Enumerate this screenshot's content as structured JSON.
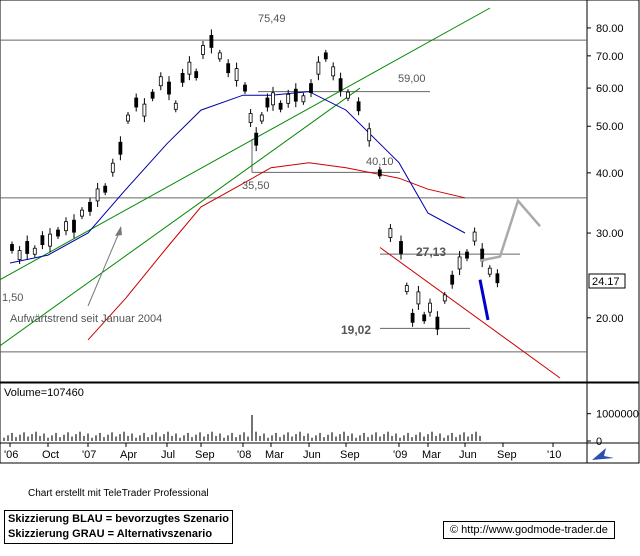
{
  "chart_data": [
    {
      "type": "candlestick",
      "y_scale": "log",
      "ylim": [
        15,
        88
      ],
      "y_ticks": [
        "80.00",
        "70.00",
        "60.00",
        "50.00",
        "40.00",
        "30.00",
        "20.00"
      ],
      "x_tick_labels": [
        "'06",
        "Oct",
        "'07",
        "Apr",
        "Jul",
        "Sep",
        "'08",
        "Mar",
        "Jun",
        "Sep",
        "'09",
        "Mar",
        "Jun",
        "Sep",
        "'10"
      ],
      "current_price_label": "24.17",
      "level_labels": [
        "75,49",
        "59,00",
        "40,10",
        "35,50",
        "27,13",
        "19,02",
        "1,50"
      ],
      "trend_annotation": "Aufwärtstrend seit Januar 2004",
      "price_path": [
        {
          "x": "'06",
          "y": 28
        },
        {
          "x": "'06",
          "y": 27
        },
        {
          "x": "'06",
          "y": 28
        },
        {
          "x": "'06",
          "y": 27.5
        },
        {
          "x": "'06",
          "y": 29
        },
        {
          "x": "Oct",
          "y": 29
        },
        {
          "x": "Oct",
          "y": 30
        },
        {
          "x": "Oct",
          "y": 31
        },
        {
          "x": "Oct",
          "y": 31
        },
        {
          "x": "Oct",
          "y": 33
        },
        {
          "x": "'07",
          "y": 34
        },
        {
          "x": "'07",
          "y": 36
        },
        {
          "x": "'07",
          "y": 37
        },
        {
          "x": "'07",
          "y": 41
        },
        {
          "x": "'07",
          "y": 45
        },
        {
          "x": "Apr",
          "y": 52
        },
        {
          "x": "Apr",
          "y": 56
        },
        {
          "x": "Apr",
          "y": 54
        },
        {
          "x": "Apr",
          "y": 58
        },
        {
          "x": "Apr",
          "y": 62
        },
        {
          "x": "Jul",
          "y": 60
        },
        {
          "x": "Jul",
          "y": 55
        },
        {
          "x": "Jul",
          "y": 63
        },
        {
          "x": "Jul",
          "y": 66
        },
        {
          "x": "Jul",
          "y": 64
        },
        {
          "x": "Sep",
          "y": 72
        },
        {
          "x": "Sep",
          "y": 75
        },
        {
          "x": "Sep",
          "y": 70
        },
        {
          "x": "Sep",
          "y": 66
        },
        {
          "x": "Sep",
          "y": 64
        },
        {
          "x": "'08",
          "y": 60
        },
        {
          "x": "'08",
          "y": 52
        },
        {
          "x": "'08",
          "y": 47
        },
        {
          "x": "'08",
          "y": 52
        },
        {
          "x": "'08",
          "y": 56
        },
        {
          "x": "Mar",
          "y": 57
        },
        {
          "x": "Mar",
          "y": 55
        },
        {
          "x": "Mar",
          "y": 57
        },
        {
          "x": "Mar",
          "y": 58
        },
        {
          "x": "Mar",
          "y": 57
        },
        {
          "x": "Jun",
          "y": 60
        },
        {
          "x": "Jun",
          "y": 66
        },
        {
          "x": "Jun",
          "y": 70
        },
        {
          "x": "Jun",
          "y": 65
        },
        {
          "x": "Jun",
          "y": 61
        },
        {
          "x": "Sep",
          "y": 58
        },
        {
          "x": "Sep",
          "y": 55
        },
        {
          "x": "Sep",
          "y": 48
        },
        {
          "x": "Sep",
          "y": 40
        },
        {
          "x": "Sep",
          "y": 30
        },
        {
          "x": "'09",
          "y": 28
        },
        {
          "x": "'09",
          "y": 23
        },
        {
          "x": "'09",
          "y": 20
        },
        {
          "x": "'09",
          "y": 22
        },
        {
          "x": "'09",
          "y": 20
        },
        {
          "x": "Mar",
          "y": 21
        },
        {
          "x": "Mar",
          "y": 19.5
        },
        {
          "x": "Mar",
          "y": 22
        },
        {
          "x": "Mar",
          "y": 24
        },
        {
          "x": "Mar",
          "y": 26
        },
        {
          "x": "Jun",
          "y": 27
        },
        {
          "x": "Jun",
          "y": 29.5
        },
        {
          "x": "Jun",
          "y": 27
        },
        {
          "x": "Jun",
          "y": 25
        },
        {
          "x": "Jun",
          "y": 24.17
        }
      ],
      "ma_blue_path": [
        {
          "x": "'06",
          "y": 26
        },
        {
          "x": "Oct",
          "y": 27
        },
        {
          "x": "'07",
          "y": 30
        },
        {
          "x": "Apr",
          "y": 37
        },
        {
          "x": "Jul",
          "y": 46
        },
        {
          "x": "Sep",
          "y": 54
        },
        {
          "x": "'08",
          "y": 58
        },
        {
          "x": "Mar",
          "y": 58
        },
        {
          "x": "Jun",
          "y": 59
        },
        {
          "x": "Sep",
          "y": 54
        },
        {
          "x": "'09",
          "y": 42
        },
        {
          "x": "Mar",
          "y": 33
        },
        {
          "x": "Jun",
          "y": 30
        }
      ],
      "ma_red_path": [
        {
          "x": "'07",
          "y": 18
        },
        {
          "x": "Apr",
          "y": 22
        },
        {
          "x": "Jul",
          "y": 28
        },
        {
          "x": "Sep",
          "y": 34
        },
        {
          "x": "'08",
          "y": 38
        },
        {
          "x": "Mar",
          "y": 41
        },
        {
          "x": "Jun",
          "y": 42
        },
        {
          "x": "Sep",
          "y": 41
        },
        {
          "x": "'09",
          "y": 39
        },
        {
          "x": "Mar",
          "y": 37
        },
        {
          "x": "Jun",
          "y": 35.5
        }
      ],
      "scenario_blue": [
        {
          "x": "Jun",
          "y": 24
        },
        {
          "x": "Sep",
          "y": 20
        }
      ],
      "scenario_grey": [
        {
          "x": "Jun",
          "y": 26.5
        },
        {
          "x": "Jun",
          "y": 31
        },
        {
          "x": "Sep",
          "y": 35
        },
        {
          "x": "Sep",
          "y": 31
        }
      ]
    },
    {
      "type": "bar",
      "title": "Volume=107460",
      "y_ticks": [
        "1000000",
        "0"
      ],
      "ylim": [
        0,
        1500000
      ]
    }
  ],
  "footer": {
    "credit": "Chart erstellt mit TeleTrader Professional",
    "legend_blue": "Skizzierung BLAU = bevorzugtes Szenario",
    "legend_grey": "Skizzierung GRAU = Alternativszenario",
    "copyright_symbol": "©",
    "url": "http://www.godmode-trader.de"
  },
  "colors": {
    "price": "#000000",
    "ma_blue": "#0000aa",
    "ma_red": "#cc0000",
    "trend_green": "#008800",
    "scenario_blue": "#0000cc",
    "scenario_grey": "#aaaaaa",
    "level": "#666666",
    "accent_icon": "#2a4fb0"
  },
  "icons": {
    "scroll_icon": "scroll-arrow-icon"
  }
}
